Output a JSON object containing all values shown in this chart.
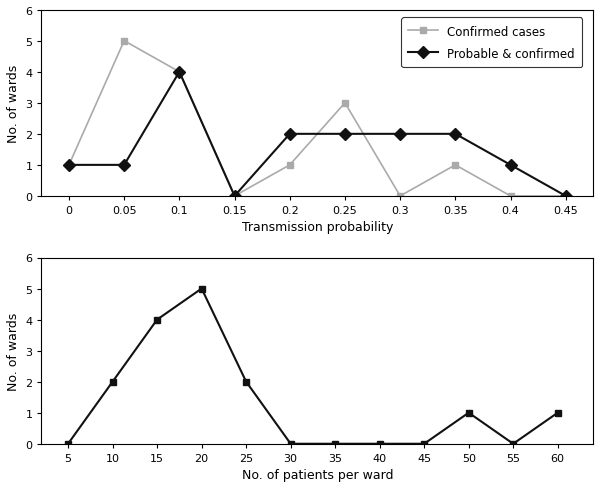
{
  "top": {
    "confirmed_x": [
      0,
      0.05,
      0.1,
      0.15,
      0.2,
      0.25,
      0.3,
      0.35,
      0.4,
      0.45
    ],
    "confirmed_y": [
      1,
      5,
      4,
      0,
      1,
      3,
      0,
      1,
      0,
      0
    ],
    "probable_x": [
      0,
      0.05,
      0.1,
      0.15,
      0.2,
      0.25,
      0.3,
      0.35,
      0.4,
      0.45
    ],
    "probable_y": [
      1,
      1,
      4,
      0,
      2,
      2,
      2,
      2,
      1,
      0
    ],
    "xlabel": "Transmission probability",
    "ylabel": "No. of wards",
    "ylim": [
      0,
      6
    ],
    "xlim": [
      -0.025,
      0.475
    ],
    "yticks": [
      0,
      1,
      2,
      3,
      4,
      5,
      6
    ],
    "xticks": [
      0,
      0.05,
      0.1,
      0.15,
      0.2,
      0.25,
      0.3,
      0.35,
      0.4,
      0.45
    ],
    "xtick_labels": [
      "0",
      "0.05",
      "0.1",
      "0.15",
      "0.2",
      "0.25",
      "0.3",
      "0.35",
      "0.4",
      "0.45"
    ],
    "legend_confirmed": "Confirmed cases",
    "legend_probable": "Probable & confirmed",
    "confirmed_color": "#aaaaaa",
    "probable_color": "#111111"
  },
  "bottom": {
    "x": [
      5,
      10,
      15,
      20,
      25,
      30,
      35,
      40,
      45,
      50,
      55,
      60
    ],
    "y": [
      0,
      2,
      4,
      5,
      2,
      0,
      0,
      0,
      0,
      1,
      0,
      1
    ],
    "xlabel": "No. of patients per ward",
    "ylabel": "No. of wards",
    "ylim": [
      0,
      6
    ],
    "xlim": [
      2,
      64
    ],
    "yticks": [
      0,
      1,
      2,
      3,
      4,
      5,
      6
    ],
    "xticks": [
      5,
      10,
      15,
      20,
      25,
      30,
      35,
      40,
      45,
      50,
      55,
      60
    ],
    "xtick_labels": [
      "5",
      "10",
      "15",
      "20",
      "25",
      "30",
      "35",
      "40",
      "45",
      "50",
      "55",
      "60"
    ],
    "color": "#111111"
  },
  "bg_color": "#ffffff",
  "figure_width": 6.0,
  "figure_height": 4.89
}
